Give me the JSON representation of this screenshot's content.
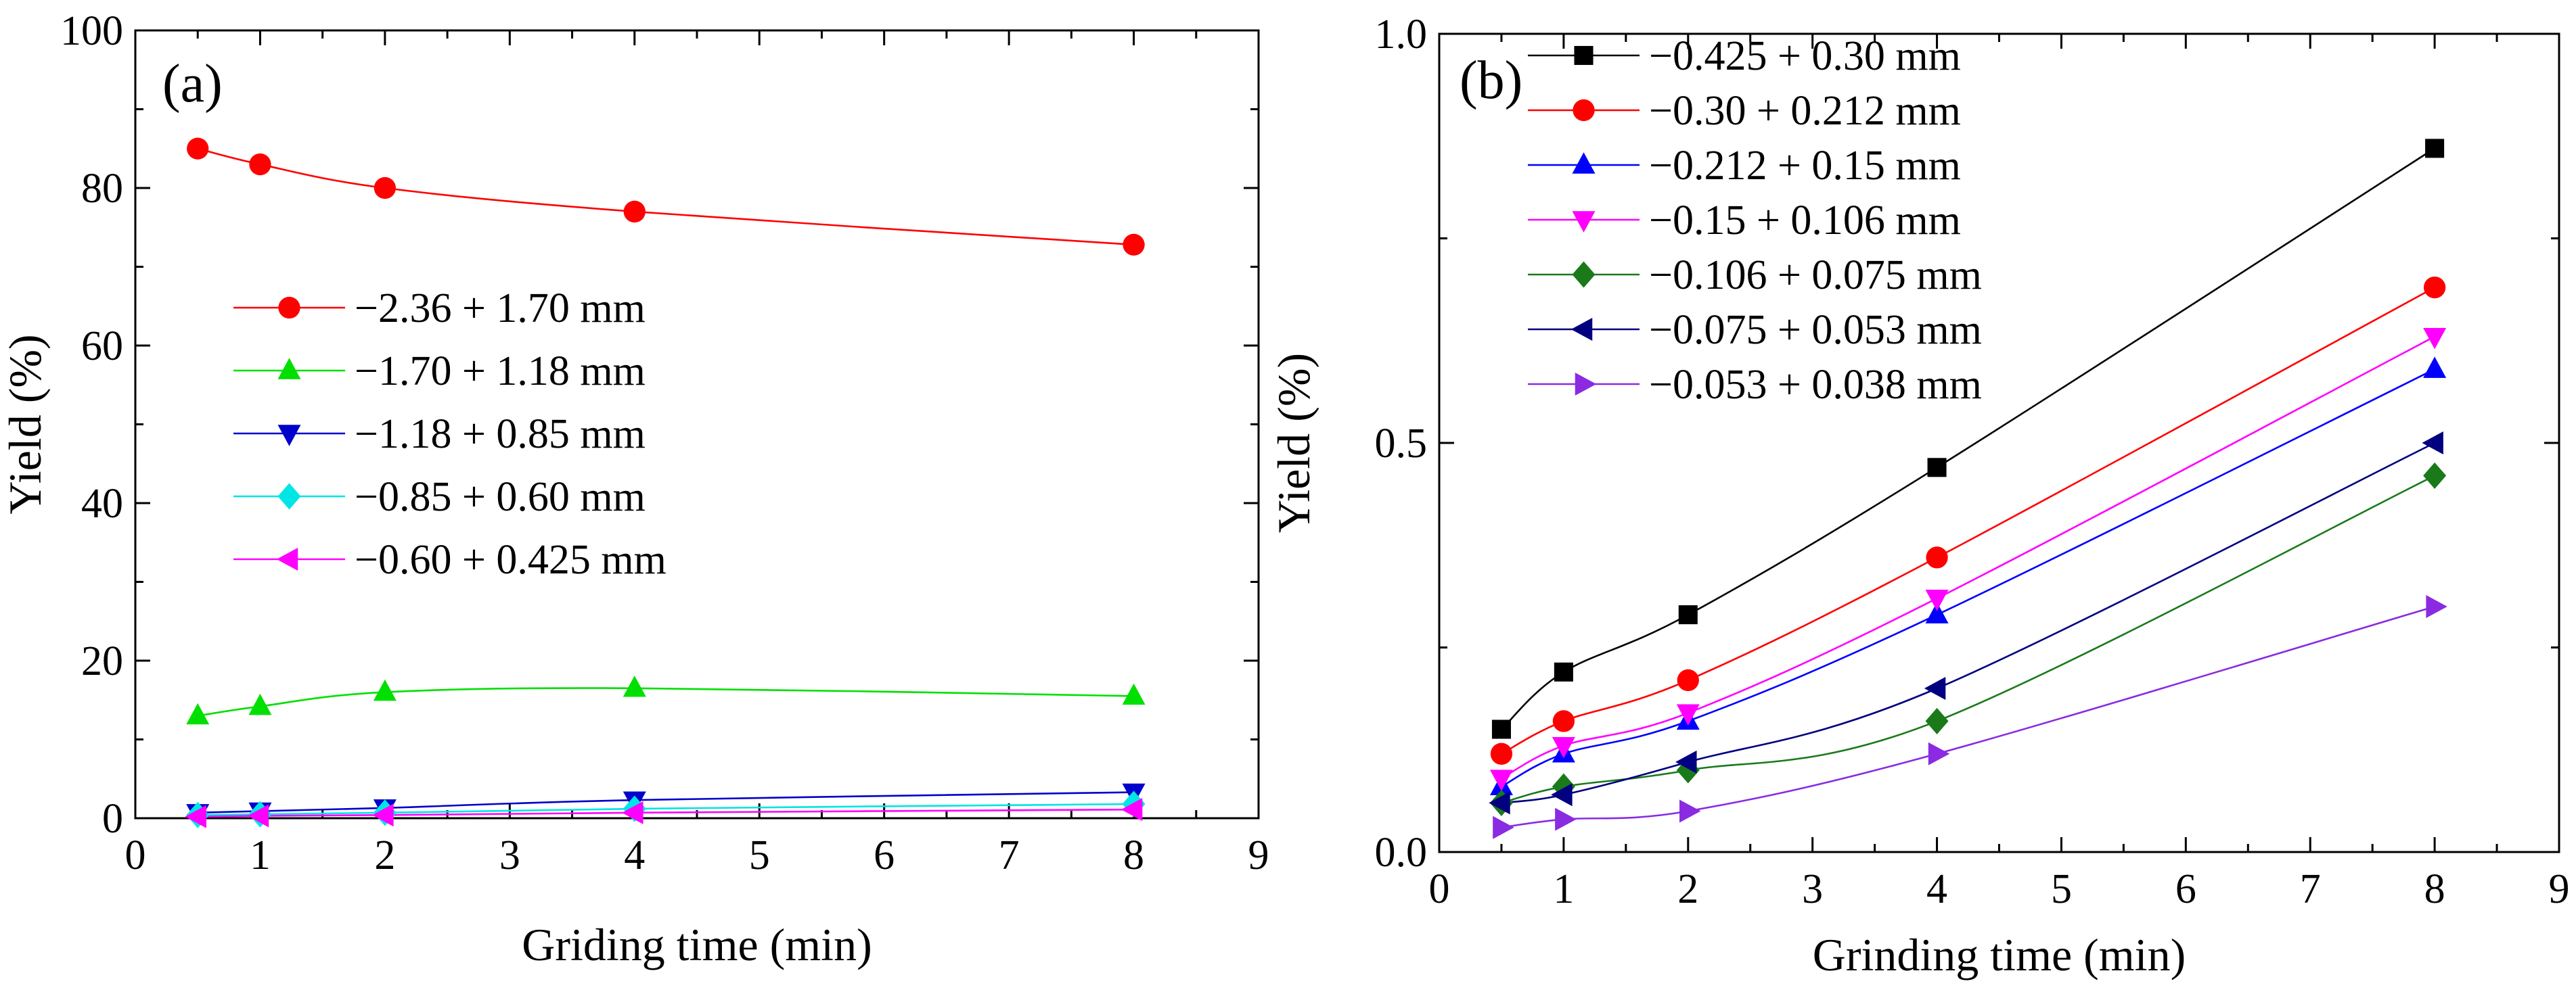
{
  "chart_data": [
    {
      "type": "line",
      "panel_label": "(a)",
      "xlabel": "Griding time (min)",
      "ylabel": "Yield (%)",
      "xlim": [
        0,
        9
      ],
      "ylim": [
        0,
        100
      ],
      "xticks": [
        0,
        1,
        2,
        3,
        4,
        5,
        6,
        7,
        8,
        9
      ],
      "yticks": [
        0,
        20,
        40,
        60,
        80,
        100
      ],
      "x": [
        0.5,
        1,
        2,
        4,
        8
      ],
      "legend_position": "center-left",
      "series": [
        {
          "name": "−2.36 + 1.70 mm",
          "color": "#ff0000",
          "marker": "circle",
          "values": [
            85.0,
            83.0,
            80.0,
            77.0,
            72.8
          ]
        },
        {
          "name": "−1.70 + 1.18 mm",
          "color": "#00e000",
          "marker": "triangle-up",
          "values": [
            13.0,
            14.2,
            16.0,
            16.5,
            15.5
          ]
        },
        {
          "name": "−1.18 + 0.85 mm",
          "color": "#0000cc",
          "marker": "triangle-down",
          "values": [
            0.7,
            0.9,
            1.3,
            2.3,
            3.3
          ]
        },
        {
          "name": "−0.85 + 0.60 mm",
          "color": "#00e5e5",
          "marker": "diamond",
          "values": [
            0.4,
            0.5,
            0.7,
            1.2,
            1.8
          ]
        },
        {
          "name": "−0.60 + 0.425 mm",
          "color": "#ff00ff",
          "marker": "triangle-left",
          "values": [
            0.2,
            0.3,
            0.4,
            0.7,
            1.1
          ]
        }
      ]
    },
    {
      "type": "line",
      "panel_label": "(b)",
      "xlabel": "Grinding time (min)",
      "ylabel": "Yield (%)",
      "xlim": [
        0,
        9
      ],
      "ylim": [
        0,
        1.0
      ],
      "xticks": [
        0,
        1,
        2,
        3,
        4,
        5,
        6,
        7,
        8,
        9
      ],
      "yticks": [
        0.0,
        0.5,
        1.0
      ],
      "ytick_labels": [
        "0.0",
        "0.5",
        "1.0"
      ],
      "x": [
        0.5,
        1,
        2,
        4,
        8
      ],
      "legend_position": "top-left",
      "series": [
        {
          "name": "−0.425 + 0.30 mm",
          "color": "#000000",
          "marker": "square",
          "values": [
            0.15,
            0.22,
            0.29,
            0.47,
            0.86
          ]
        },
        {
          "name": "−0.30 + 0.212 mm",
          "color": "#ff0000",
          "marker": "circle",
          "values": [
            0.12,
            0.16,
            0.21,
            0.36,
            0.69
          ]
        },
        {
          "name": "−0.212 + 0.15 mm",
          "color": "#0000ff",
          "marker": "triangle-up",
          "values": [
            0.08,
            0.12,
            0.16,
            0.29,
            0.59
          ]
        },
        {
          "name": "−0.15 + 0.106 mm",
          "color": "#ff00ff",
          "marker": "triangle-down",
          "values": [
            0.09,
            0.13,
            0.17,
            0.31,
            0.63
          ]
        },
        {
          "name": "−0.106 + 0.075 mm",
          "color": "#1a7a1a",
          "marker": "diamond",
          "values": [
            0.06,
            0.08,
            0.1,
            0.16,
            0.46
          ]
        },
        {
          "name": "−0.075 + 0.053 mm",
          "color": "#000080",
          "marker": "triangle-left",
          "values": [
            0.06,
            0.07,
            0.11,
            0.2,
            0.5
          ]
        },
        {
          "name": "−0.053 + 0.038 mm",
          "color": "#8a2be2",
          "marker": "triangle-right",
          "values": [
            0.03,
            0.04,
            0.05,
            0.12,
            0.3
          ]
        }
      ]
    }
  ]
}
